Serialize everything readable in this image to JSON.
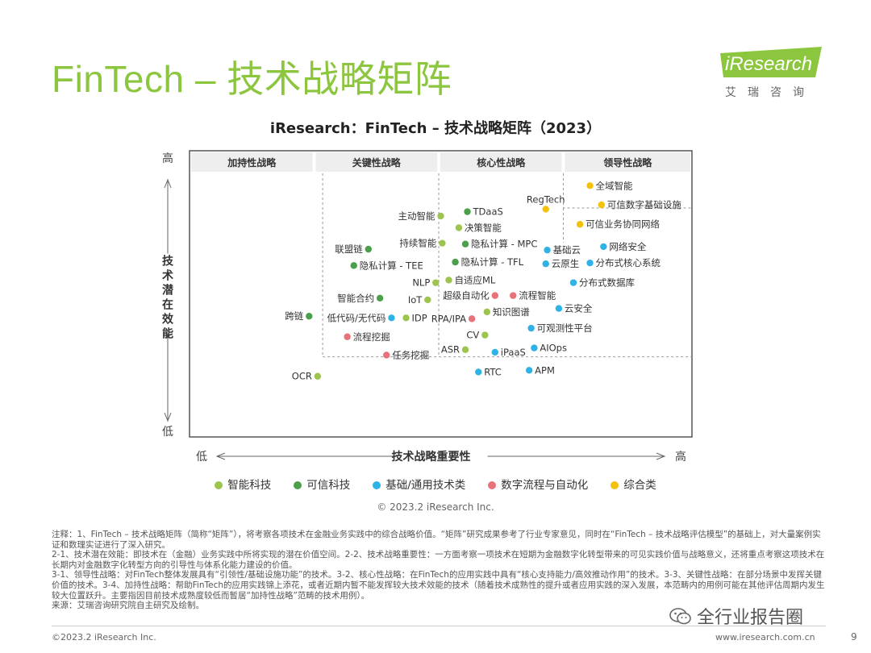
{
  "page": {
    "title": "FinTech – 技术战略矩阵",
    "logo_text": "iResearch",
    "logo_sub": "艾瑞咨询",
    "copyright_mid": "© 2023.2 iResearch Inc.",
    "footer_left": "©2023.2 iResearch Inc.",
    "footer_right": "www.iresearch.com.cn",
    "page_number": "9",
    "watermark": "全行业报告圈",
    "notes": [
      "注释：1、FinTech – 技术战略矩阵（简称“矩阵”），将考察各项技术在金融业务实践中的综合战略价值。“矩阵”研究成果参考了行业专家意见，同时在“FinTech – 技术战略评估模型”的基础上，对大量案例实证和数理实证进行了深入研究。",
      "2-1、技术潜在效能：即技术在（金融）业务实践中所将实现的潜在价值空间。2-2、技术战略重要性：一方面考察一项技术在短期为金融数字化转型带来的可见实践价值与战略意义，还将重点考察这项技术在长期内对金融数字化转型方向的引导性与体系化能力建设的价值。",
      "3-1、领导性战略：对FinTech整体发展具有“引领性/基础设施功能”的技术。3-2、核心性战略：在FinTech的应用实践中具有“核心支持能力/高效推动作用”的技术。3-3、关键性战略：在部分场景中发挥关键价值的技术。3-4、加持性战略：帮助FinTech的应用实践锦上添花，或者近期内暂不能发挥较大技术效能的技术（随着技术成熟性的提升或者应用实践的深入发展，本范畴内的用例可能在其他评估周期内发生较大位置跃升。主要指因目前技术成熟度较低而暂居“加持性战略”范畴的技术用例）。",
      "来源：艾瑞咨询研究院自主研究及绘制。"
    ]
  },
  "chart_data": {
    "type": "scatter",
    "title": "iResearch：FinTech – 技术战略矩阵（2023）",
    "xlabel": "技术战略重要性",
    "ylabel": "技术潜在效能",
    "x_low": "低",
    "x_high": "高",
    "y_low": "低",
    "y_high": "高",
    "xlim": [
      0,
      100
    ],
    "ylim": [
      0,
      100
    ],
    "zones": [
      "加持性战略",
      "关键性战略",
      "核心性战略",
      "领导性战略"
    ],
    "categories": [
      {
        "key": "ai",
        "name": "智能科技",
        "color": "#9dc44d"
      },
      {
        "key": "trust",
        "name": "可信科技",
        "color": "#4aa04a"
      },
      {
        "key": "base",
        "name": "基础/通用技术类",
        "color": "#2fb3e6"
      },
      {
        "key": "flow",
        "name": "数字流程与自动化",
        "color": "#e8727a"
      },
      {
        "key": "all",
        "name": "综合类",
        "color": "#f4c20d"
      }
    ],
    "points": [
      {
        "label": "全域智能",
        "cat": "all",
        "x": 79.7,
        "y": 87.8,
        "side": "right"
      },
      {
        "label": "可信数字基础设施",
        "cat": "all",
        "x": 82.0,
        "y": 81.1,
        "side": "right"
      },
      {
        "label": "RegTech",
        "cat": "all",
        "x": 70.9,
        "y": 79.6,
        "side": "above"
      },
      {
        "label": "可信业务协同网络",
        "cat": "all",
        "x": 77.7,
        "y": 74.3,
        "side": "right"
      },
      {
        "label": "TDaaS",
        "cat": "trust",
        "x": 55.3,
        "y": 78.7,
        "side": "right"
      },
      {
        "label": "主动智能",
        "cat": "ai",
        "x": 50.0,
        "y": 77.2,
        "side": "left"
      },
      {
        "label": "决策智能",
        "cat": "ai",
        "x": 53.6,
        "y": 73.1,
        "side": "right"
      },
      {
        "label": "持续智能",
        "cat": "ai",
        "x": 50.3,
        "y": 67.7,
        "side": "left"
      },
      {
        "label": "隐私计算 - MPC",
        "cat": "trust",
        "x": 54.9,
        "y": 67.4,
        "side": "right"
      },
      {
        "label": "联盟链",
        "cat": "trust",
        "x": 35.6,
        "y": 65.6,
        "side": "left"
      },
      {
        "label": "基础云",
        "cat": "base",
        "x": 71.2,
        "y": 65.3,
        "side": "right"
      },
      {
        "label": "网络安全",
        "cat": "base",
        "x": 82.4,
        "y": 66.5,
        "side": "right"
      },
      {
        "label": "隐私计算 - TEE",
        "cat": "trust",
        "x": 32.7,
        "y": 59.9,
        "side": "right"
      },
      {
        "label": "隐私计算 - TFL",
        "cat": "trust",
        "x": 52.9,
        "y": 61.1,
        "side": "right"
      },
      {
        "label": "云原生",
        "cat": "base",
        "x": 70.9,
        "y": 60.5,
        "side": "right"
      },
      {
        "label": "分布式核心系统",
        "cat": "base",
        "x": 79.7,
        "y": 60.8,
        "side": "right"
      },
      {
        "label": "NLP",
        "cat": "ai",
        "x": 49.0,
        "y": 53.9,
        "side": "left"
      },
      {
        "label": "自适应ML",
        "cat": "ai",
        "x": 51.6,
        "y": 54.8,
        "side": "right"
      },
      {
        "label": "分布式数据库",
        "cat": "base",
        "x": 76.4,
        "y": 53.9,
        "side": "right"
      },
      {
        "label": "智能合约",
        "cat": "trust",
        "x": 37.9,
        "y": 48.5,
        "side": "left"
      },
      {
        "label": "IoT",
        "cat": "ai",
        "x": 47.4,
        "y": 47.9,
        "side": "left"
      },
      {
        "label": "超级自动化",
        "cat": "flow",
        "x": 60.8,
        "y": 49.4,
        "side": "left"
      },
      {
        "label": "流程智能",
        "cat": "flow",
        "x": 64.4,
        "y": 49.4,
        "side": "right"
      },
      {
        "label": "跨链",
        "cat": "trust",
        "x": 23.8,
        "y": 42.2,
        "side": "left"
      },
      {
        "label": "低代码/无代码",
        "cat": "base",
        "x": 40.2,
        "y": 41.6,
        "side": "left"
      },
      {
        "label": "IDP",
        "cat": "ai",
        "x": 43.1,
        "y": 41.6,
        "side": "right"
      },
      {
        "label": "RPA/IPA",
        "cat": "flow",
        "x": 56.2,
        "y": 41.3,
        "side": "left"
      },
      {
        "label": "知识图谱",
        "cat": "ai",
        "x": 59.2,
        "y": 43.7,
        "side": "right"
      },
      {
        "label": "云安全",
        "cat": "base",
        "x": 73.5,
        "y": 44.9,
        "side": "right"
      },
      {
        "label": "流程挖掘",
        "cat": "flow",
        "x": 31.4,
        "y": 35.0,
        "side": "right"
      },
      {
        "label": "可观测性平台",
        "cat": "base",
        "x": 68.0,
        "y": 38.0,
        "side": "right"
      },
      {
        "label": "CV",
        "cat": "ai",
        "x": 58.8,
        "y": 35.6,
        "side": "left"
      },
      {
        "label": "ASR",
        "cat": "ai",
        "x": 54.9,
        "y": 30.5,
        "side": "left"
      },
      {
        "label": "iPaaS",
        "cat": "base",
        "x": 60.8,
        "y": 29.6,
        "side": "right"
      },
      {
        "label": "AIOps",
        "cat": "base",
        "x": 68.6,
        "y": 31.1,
        "side": "right"
      },
      {
        "label": "任务挖掘",
        "cat": "flow",
        "x": 39.2,
        "y": 28.6,
        "side": "right"
      },
      {
        "label": "RTC",
        "cat": "base",
        "x": 57.5,
        "y": 22.7,
        "side": "right"
      },
      {
        "label": "APM",
        "cat": "base",
        "x": 67.6,
        "y": 23.3,
        "side": "right"
      },
      {
        "label": "OCR",
        "cat": "ai",
        "x": 25.5,
        "y": 21.2,
        "side": "left"
      }
    ]
  }
}
